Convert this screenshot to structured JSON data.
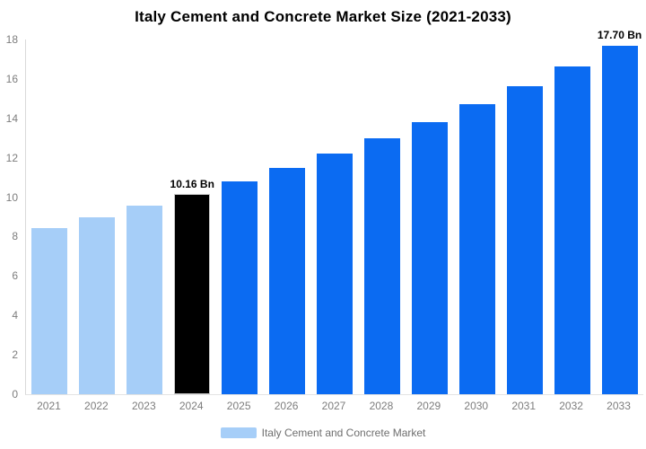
{
  "title": "Italy Cement and Concrete Market Size (2021-2033)",
  "colors": {
    "background": "#ffffff",
    "title_text": "#000000",
    "axis_text": "#7d7d7d",
    "axis_line": "#d9d9d9",
    "baseline": "#e3e3e3",
    "historical_bar": "#a6cef8",
    "base_year_bar": "#000000",
    "base_year_border": "#c8c8c8",
    "forecast_bar": "#0b6bf2",
    "value_label_text": "#000000",
    "legend_text": "#6e6e6e"
  },
  "chart_data": {
    "type": "bar",
    "title": "Italy Cement and Concrete Market Size (2021-2033)",
    "xlabel": "",
    "ylabel": "",
    "unit": "Bn",
    "ylim": [
      0,
      18
    ],
    "yticks": [
      0,
      2,
      4,
      6,
      8,
      10,
      12,
      14,
      16,
      18
    ],
    "grid": false,
    "categories": [
      "2021",
      "2022",
      "2023",
      "2024",
      "2025",
      "2026",
      "2027",
      "2028",
      "2029",
      "2030",
      "2031",
      "2032",
      "2033"
    ],
    "series": [
      {
        "name": "Italy Cement and Concrete Market",
        "values": [
          8.44,
          8.98,
          9.55,
          10.16,
          10.81,
          11.49,
          12.22,
          13.0,
          13.83,
          14.71,
          15.64,
          16.64,
          17.7
        ]
      }
    ],
    "bar_colors": [
      "#a6cef8",
      "#a6cef8",
      "#a6cef8",
      "#000000",
      "#0b6bf2",
      "#0b6bf2",
      "#0b6bf2",
      "#0b6bf2",
      "#0b6bf2",
      "#0b6bf2",
      "#0b6bf2",
      "#0b6bf2",
      "#0b6bf2"
    ],
    "highlight": {
      "index": 3,
      "border_color": "#c8c8c8"
    },
    "data_labels": [
      {
        "index": 3,
        "text": "10.16 Bn"
      },
      {
        "index": 12,
        "text": "17.70 Bn"
      }
    ],
    "legend": {
      "position": "bottom",
      "items": [
        {
          "label": "Italy Cement and Concrete Market",
          "color": "#a6cef8"
        }
      ]
    }
  }
}
